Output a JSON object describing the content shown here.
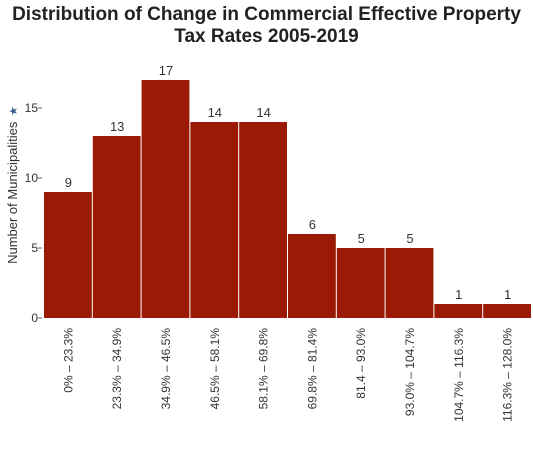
{
  "chart_data": {
    "type": "bar",
    "title_lines": [
      "Distribution of Change in Commercial Effective Property",
      "Tax Rates 2005-2019"
    ],
    "ylabel": "Number of Municipalities",
    "ylabel_marker": "★",
    "categories": [
      "0% – 23.3%",
      "23.3% – 34.9%",
      "34.9% – 46.5%",
      "46.5% – 58.1%",
      "58.1% – 69.8%",
      "69.8% – 81.4%",
      "81.4 – 93.0%",
      "93.0% – 104.7%",
      "104.7% – 116.3%",
      "116.3% – 128.0%"
    ],
    "values": [
      9,
      13,
      17,
      14,
      14,
      6,
      5,
      5,
      1,
      1
    ],
    "yticks": [
      0,
      5,
      10,
      15
    ],
    "ylim": [
      0,
      18
    ],
    "grid": false,
    "data_labels": true,
    "bar_color": "#9b1a06"
  }
}
